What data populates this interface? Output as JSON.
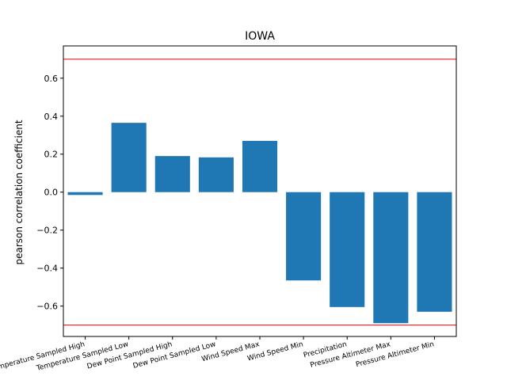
{
  "chart_data": {
    "type": "bar",
    "title": "IOWA",
    "xlabel": "",
    "ylabel": "pearson correlation coefficient",
    "categories": [
      "Temperature Sampled High",
      "Temperature Sampled Low",
      "Dew Point Sampled High",
      "Dew Point Sampled Low",
      "Wind Speed Max",
      "Wind Speed Min",
      "Precipitation",
      "Pressure Altimeter Max",
      "Pressure Altimeter Min"
    ],
    "values": [
      -0.015,
      0.365,
      0.19,
      0.183,
      0.27,
      -0.465,
      -0.605,
      -0.69,
      -0.63
    ],
    "ylim": [
      -0.76,
      0.77
    ],
    "yticks": [
      -0.6,
      -0.4,
      -0.2,
      0.0,
      0.2,
      0.4,
      0.6
    ],
    "ytick_labels": [
      "−0.6",
      "−0.4",
      "−0.2",
      "0.0",
      "0.2",
      "0.4",
      "0.6"
    ],
    "reference_lines": [
      0.7,
      -0.7
    ],
    "bar_color": "#1f77b4",
    "reference_line_color": "#ff0000",
    "grid": false,
    "legend": "none"
  }
}
